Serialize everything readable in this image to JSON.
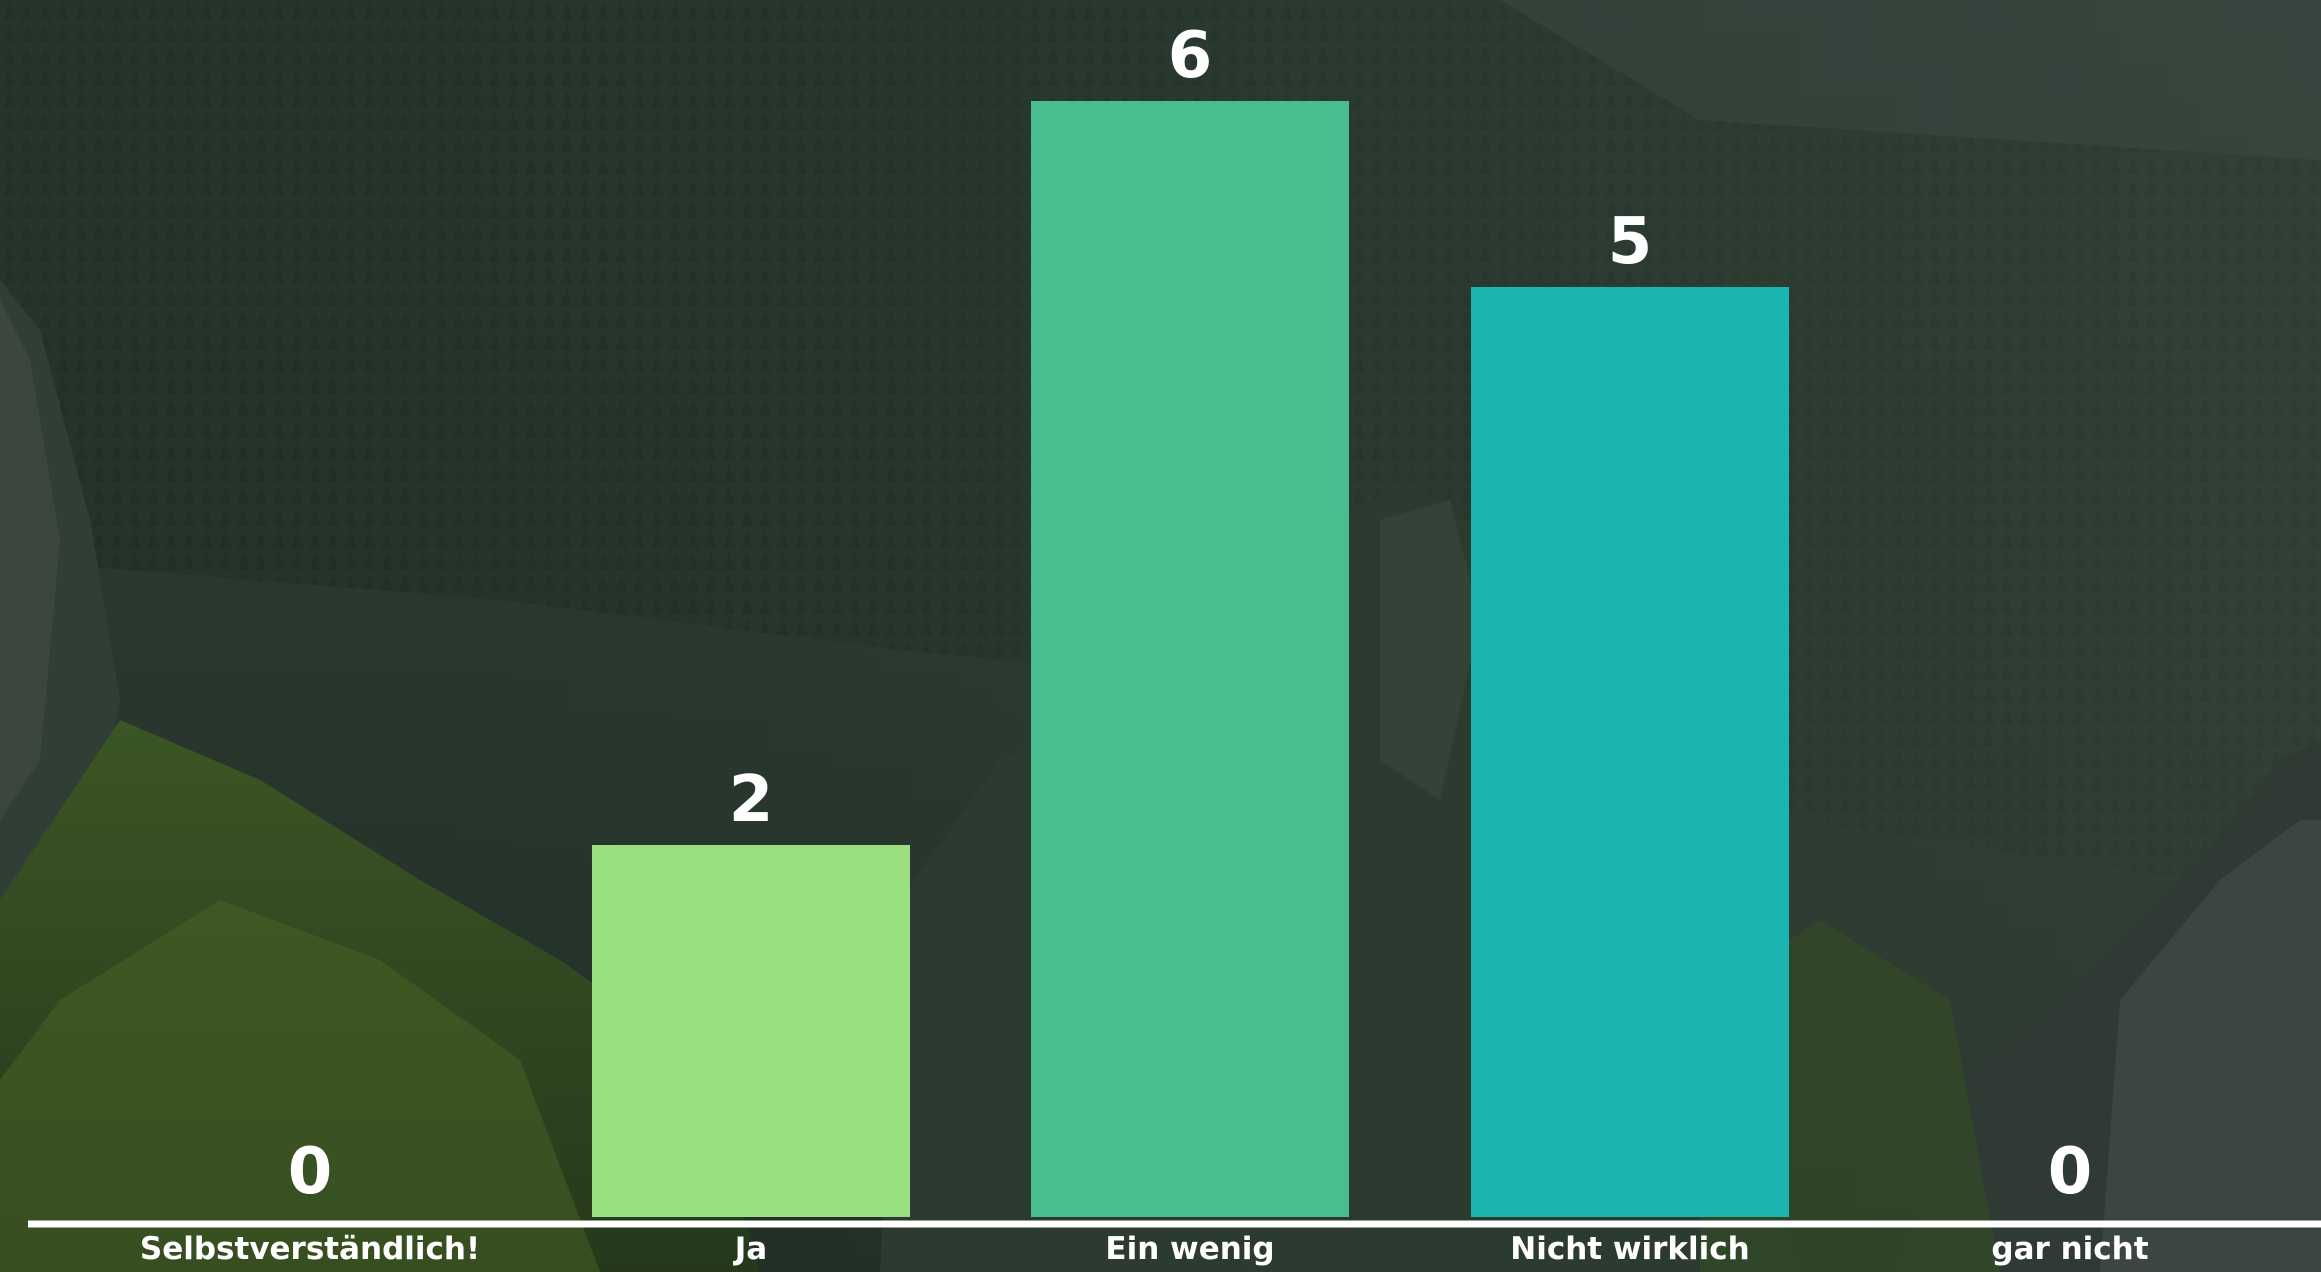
{
  "chart_data": {
    "type": "bar",
    "categories": [
      "Selbstverständlich!",
      "Ja",
      "Ein wenig",
      "Nicht wirklich",
      "gar nicht"
    ],
    "values": [
      0,
      2,
      6,
      5,
      0
    ],
    "colors": [
      "#9be07e",
      "#9be07e",
      "#48bd8e",
      "#1bb4b0",
      "#1bb4b0"
    ],
    "axis_color": "#ffffff",
    "ylim": [
      0,
      6
    ],
    "grid": false,
    "legend": "none"
  }
}
